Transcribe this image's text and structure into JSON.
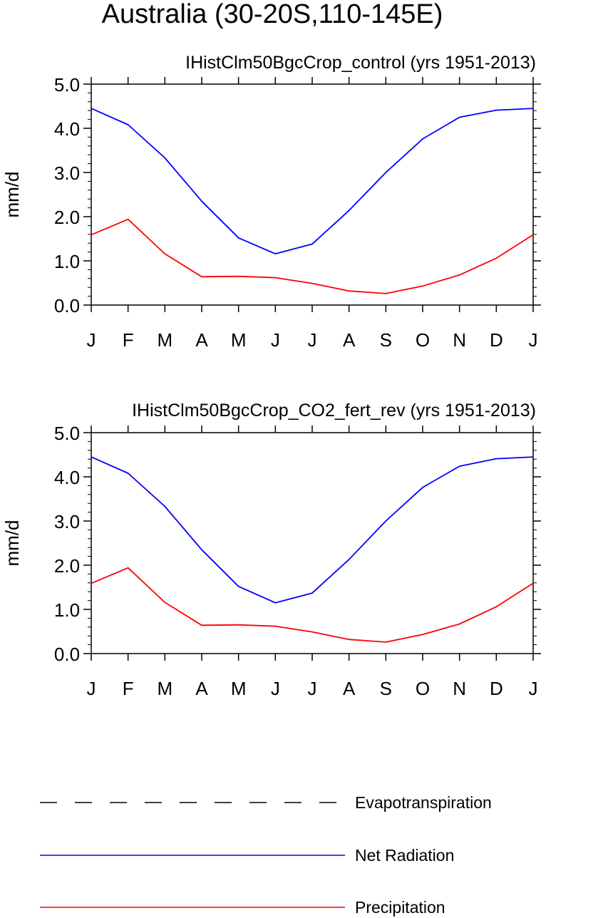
{
  "figure_title": "Australia (30-20S,110-145E)",
  "colors": {
    "evapotranspiration": "#000000",
    "net_radiation": "#0000ff",
    "precipitation": "#ff0000"
  },
  "legend": [
    {
      "label": "Evapotranspiration",
      "style": "dashed",
      "color": "#000000"
    },
    {
      "label": "Net Radiation",
      "style": "solid",
      "color": "#0000ff"
    },
    {
      "label": "Precipitation",
      "style": "solid",
      "color": "#ff0000"
    }
  ],
  "chart_data": [
    {
      "type": "line",
      "title": "IHistClm50BgcCrop_control (yrs 1951-2013)",
      "ylabel": "mm/d",
      "xlabel": "",
      "categories": [
        "J",
        "F",
        "M",
        "A",
        "M",
        "J",
        "J",
        "A",
        "S",
        "O",
        "N",
        "D",
        "J"
      ],
      "yticks": [
        "0.0",
        "1.0",
        "2.0",
        "3.0",
        "4.0",
        "5.0"
      ],
      "ylim": [
        0,
        5
      ],
      "series": [
        {
          "name": "Net Radiation",
          "color": "#0000ff",
          "values": [
            4.45,
            4.08,
            3.33,
            2.35,
            1.52,
            1.16,
            1.38,
            2.14,
            3.0,
            3.76,
            4.25,
            4.41,
            4.45
          ]
        },
        {
          "name": "Precipitation",
          "color": "#ff0000",
          "values": [
            1.59,
            1.94,
            1.16,
            0.64,
            0.65,
            0.62,
            0.49,
            0.32,
            0.26,
            0.43,
            0.68,
            1.06,
            1.59
          ]
        }
      ]
    },
    {
      "type": "line",
      "title": "IHistClm50BgcCrop_CO2_fert_rev (yrs 1951-2013)",
      "ylabel": "mm/d",
      "xlabel": "",
      "categories": [
        "J",
        "F",
        "M",
        "A",
        "M",
        "J",
        "J",
        "A",
        "S",
        "O",
        "N",
        "D",
        "J"
      ],
      "yticks": [
        "0.0",
        "1.0",
        "2.0",
        "3.0",
        "4.0",
        "5.0"
      ],
      "ylim": [
        0,
        5
      ],
      "series": [
        {
          "name": "Net Radiation",
          "color": "#0000ff",
          "values": [
            4.45,
            4.08,
            3.33,
            2.35,
            1.52,
            1.15,
            1.37,
            2.13,
            3.0,
            3.76,
            4.24,
            4.41,
            4.45
          ]
        },
        {
          "name": "Precipitation",
          "color": "#ff0000",
          "values": [
            1.59,
            1.94,
            1.16,
            0.64,
            0.65,
            0.62,
            0.49,
            0.32,
            0.26,
            0.43,
            0.67,
            1.06,
            1.59
          ]
        }
      ]
    }
  ]
}
